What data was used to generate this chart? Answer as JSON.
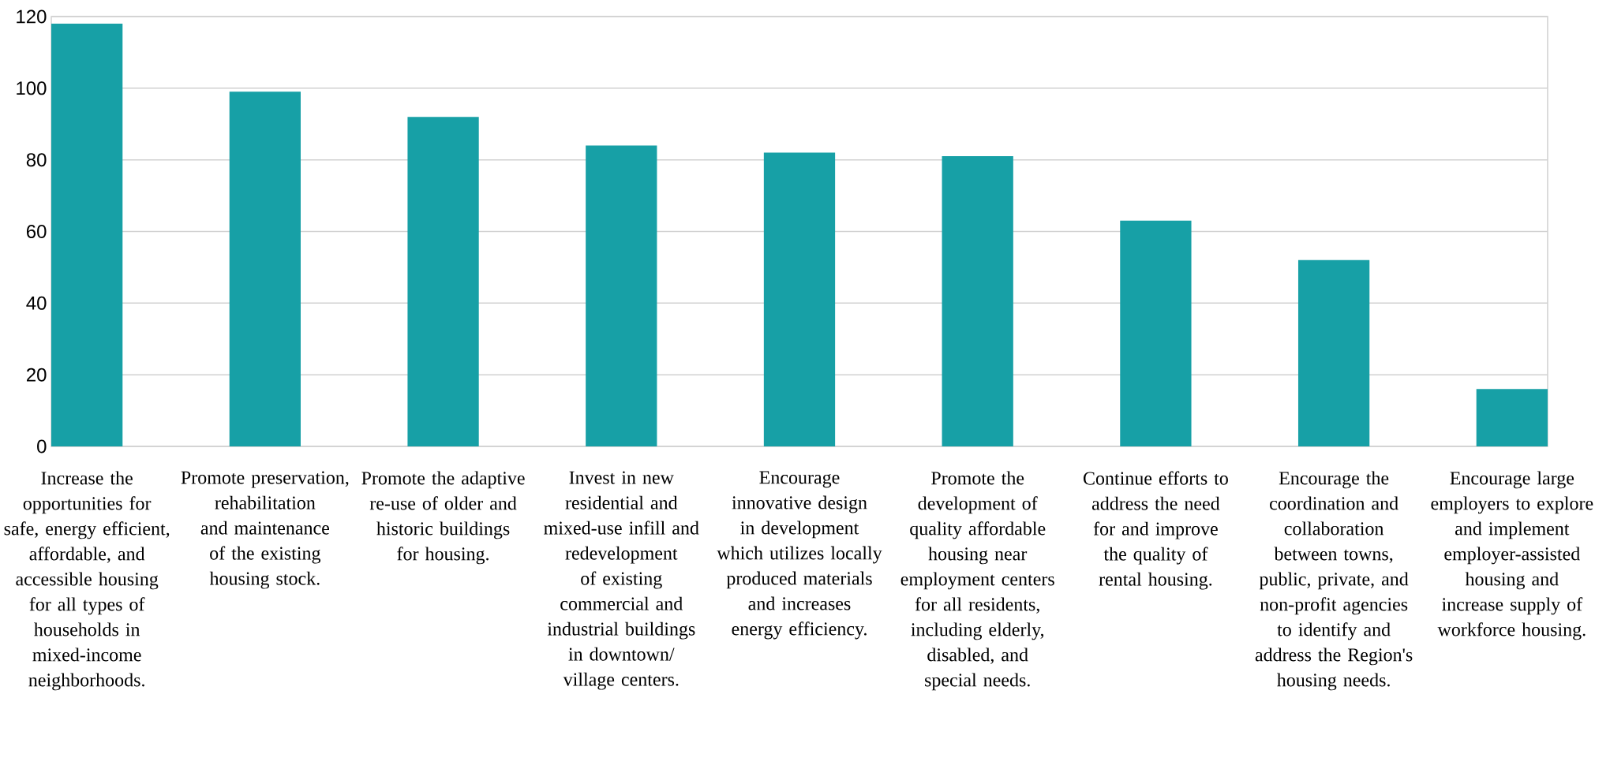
{
  "chart_data": {
    "type": "bar",
    "categories": [
      "Increase the opportunities for safe, energy efficient, affordable, and accessible housing for all types of households in mixed-income neighborhoods.",
      "Promote preservation, rehabilitation and maintenance of the existing housing stock.",
      "Promote the adaptive re-use of older and historic buildings for housing.",
      "Invest in new residential and mixed-use infill and redevelopment of existing commercial and industrial buildings in downtown/ village centers.",
      "Encourage innovative design in development which utilizes locally produced materials and increases energy efficiency.",
      "Promote the development of quality affordable housing near employment centers for all residents, including elderly, disabled, and special needs.",
      "Continue efforts to address the need for and improve the quality of rental housing.",
      "Encourage the coordination and collaboration between towns, public, private, and non-profit agencies to identify and address the Region's housing needs.",
      "Encourage large employers to explore and implement employer-assisted housing and increase supply of workforce housing."
    ],
    "values": [
      118,
      99,
      92,
      84,
      82,
      81,
      63,
      52,
      16
    ],
    "color": "#17a0a6",
    "ylim": [
      0,
      120
    ],
    "yticks": [
      0,
      20,
      40,
      60,
      80,
      100,
      120
    ],
    "grid": "y"
  }
}
